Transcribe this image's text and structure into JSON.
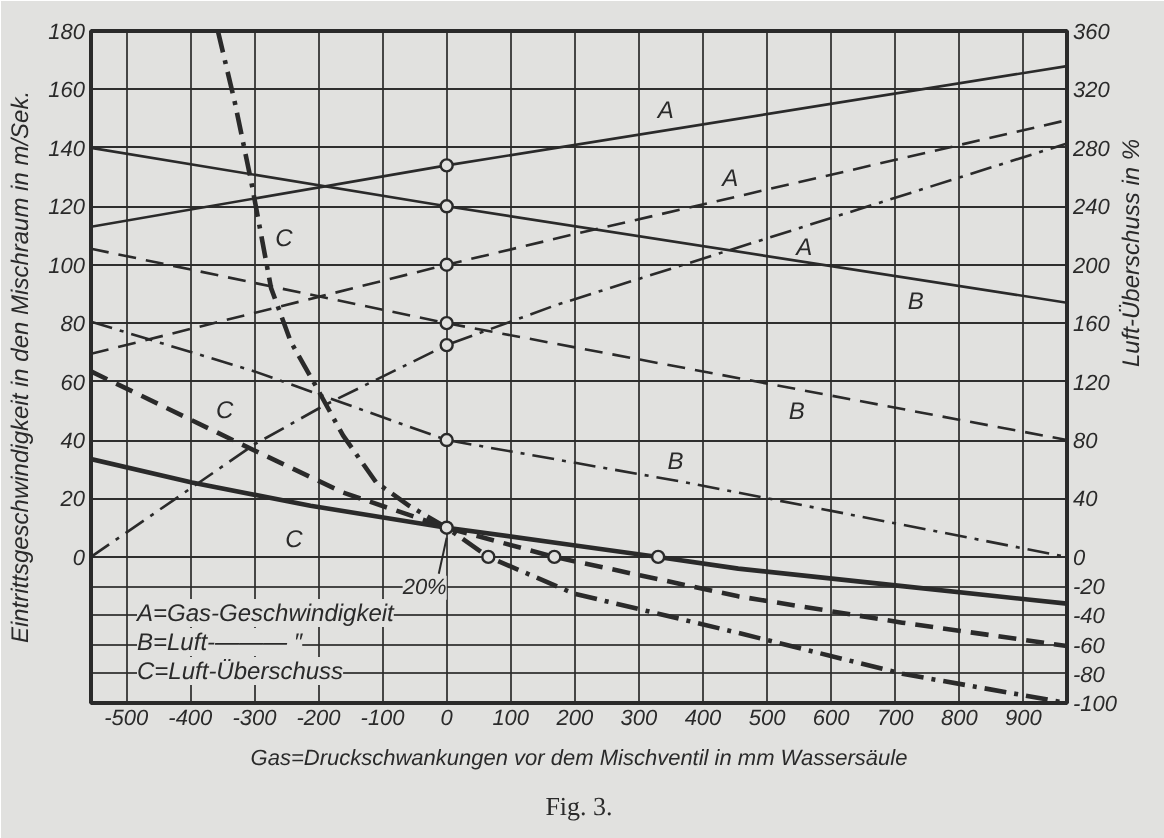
{
  "chart_data": {
    "type": "line",
    "xlabel": "Gas=Druckschwankungen vor dem Mischventil in mm Wassersäule",
    "ylabel": "Eintrittsgeschwindigkeit in den Mischraum in m/Sek.",
    "y2label": "Luft-Überschuss in %",
    "xlim": [
      -555,
      968
    ],
    "xticks": [
      -500,
      -400,
      -300,
      -200,
      -100,
      0,
      100,
      200,
      300,
      400,
      500,
      600,
      700,
      800,
      900
    ],
    "ylim": [
      -50,
      180
    ],
    "yticks": [
      0,
      20,
      40,
      60,
      80,
      100,
      120,
      140,
      160,
      180
    ],
    "y2lim": [
      -100,
      360
    ],
    "y2ticks": [
      -100,
      -80,
      -60,
      -40,
      -20,
      0,
      40,
      80,
      120,
      160,
      200,
      240,
      280,
      320,
      360
    ],
    "grid": true,
    "series": [
      {
        "name": "A",
        "line_style": "solid",
        "color": "#2a2a2a",
        "x": [
          -555,
          0,
          968
        ],
        "values": [
          113,
          134,
          168
        ]
      },
      {
        "name": "B",
        "line_style": "solid",
        "color": "#2a2a2a",
        "x": [
          -555,
          0,
          968
        ],
        "values": [
          140,
          120,
          87
        ]
      },
      {
        "name": "A",
        "line_style": "dashed",
        "color": "#2a2a2a",
        "x": [
          -555,
          -200,
          0,
          200,
          968
        ],
        "values": [
          69.5,
          89,
          100,
          110.5,
          149.5
        ]
      },
      {
        "name": "B",
        "line_style": "dashed",
        "color": "#2a2a2a",
        "x": [
          -555,
          0,
          968
        ],
        "values": [
          105.5,
          80,
          40
        ]
      },
      {
        "name": "A",
        "line_style": "dashdot",
        "color": "#2a2a2a",
        "x": [
          -555,
          -300,
          -190,
          0,
          168,
          600,
          968
        ],
        "values": [
          0,
          38.5,
          52,
          72.5,
          86,
          116,
          141.5
        ]
      },
      {
        "name": "B",
        "line_style": "dashdot",
        "color": "#2a2a2a",
        "x": [
          -555,
          -300,
          0,
          373,
          968
        ],
        "values": [
          80.5,
          63.5,
          40,
          25.5,
          0
        ]
      },
      {
        "name": "C",
        "line_style": "dashdot",
        "axis": "y2",
        "color": "#2a2a2a",
        "x": [
          -357,
          -331,
          -305,
          -274,
          -243,
          -208,
          -161.5,
          -110,
          -58.5,
          0,
          65,
          198,
          455,
          711,
          968
        ],
        "values": [
          360,
          312,
          257,
          184,
          147,
          120,
          83,
          51,
          35,
          20,
          0,
          -25,
          -52,
          -80,
          -100
        ]
      },
      {
        "name": "C",
        "line_style": "dashed",
        "axis": "y2",
        "color": "#2a2a2a",
        "x": [
          -555,
          -315,
          -161.5,
          0,
          168,
          455,
          711,
          968
        ],
        "values": [
          127,
          76,
          44,
          20,
          0,
          -27,
          -45,
          -61
        ]
      },
      {
        "name": "C",
        "line_style": "solid",
        "axis": "y2",
        "color": "#2a2a2a",
        "x": [
          -555,
          -397.5,
          -212.5,
          0,
          198,
          330,
          455,
          711,
          968
        ],
        "values": [
          67,
          51,
          35,
          20,
          8,
          0,
          -8,
          -20,
          -32
        ]
      },
      {
        "type": "scatter",
        "marker": "circle",
        "color": "#2a2a2a",
        "x": [
          0,
          0,
          0,
          0,
          0,
          0
        ],
        "values": [
          134,
          120,
          100,
          80,
          72.5,
          40
        ]
      },
      {
        "type": "scatter",
        "marker": "circle",
        "axis": "y2",
        "color": "#2a2a2a",
        "x": [
          0,
          65,
          168,
          330
        ],
        "values": [
          20,
          0,
          0,
          0
        ]
      }
    ],
    "annotations": [
      "A=Gas-Geschwindigkeit",
      "B=Luft-——— ″",
      "C=Luft-Überschuss",
      {
        "text": "20%",
        "x": 0,
        "y": 10
      },
      "Fig. 3."
    ]
  }
}
